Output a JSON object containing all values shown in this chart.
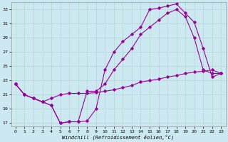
{
  "xlabel": "Windchill (Refroidissement éolien,°C)",
  "bg_color": "#cce8f0",
  "line_color": "#990099",
  "grid_color": "#b0d8cc",
  "xlim": [
    -0.5,
    23.5
  ],
  "ylim": [
    16.5,
    34.0
  ],
  "yticks": [
    17,
    19,
    21,
    23,
    25,
    27,
    29,
    31,
    33
  ],
  "xticks": [
    0,
    1,
    2,
    3,
    4,
    5,
    6,
    7,
    8,
    9,
    10,
    11,
    12,
    13,
    14,
    15,
    16,
    17,
    18,
    19,
    20,
    21,
    22,
    23
  ],
  "line1_x": [
    0,
    1,
    2,
    3,
    4,
    5,
    6,
    7,
    8,
    9,
    10,
    11,
    12,
    13,
    14,
    15,
    16,
    17,
    18,
    19,
    20,
    21,
    22,
    23
  ],
  "line1_y": [
    22.5,
    21.0,
    20.5,
    20.0,
    19.5,
    17.0,
    17.2,
    17.2,
    17.3,
    19.0,
    24.5,
    27.0,
    28.5,
    29.5,
    30.5,
    33.0,
    33.2,
    33.5,
    33.8,
    32.5,
    31.2,
    27.5,
    23.5,
    24.0
  ],
  "line2_x": [
    0,
    1,
    2,
    3,
    4,
    5,
    6,
    7,
    8,
    9,
    10,
    11,
    12,
    13,
    14,
    15,
    16,
    17,
    18,
    19,
    20,
    21,
    22,
    23
  ],
  "line2_y": [
    22.5,
    21.0,
    20.5,
    20.0,
    19.5,
    17.0,
    17.2,
    17.2,
    21.5,
    21.5,
    22.5,
    24.5,
    26.0,
    27.5,
    29.5,
    30.5,
    31.5,
    32.5,
    33.0,
    32.0,
    29.0,
    24.5,
    24.0,
    24.0
  ],
  "line3_x": [
    0,
    1,
    2,
    3,
    4,
    5,
    6,
    7,
    8,
    9,
    10,
    11,
    12,
    13,
    14,
    15,
    16,
    17,
    18,
    19,
    20,
    21,
    22,
    23
  ],
  "line3_y": [
    22.5,
    21.0,
    20.5,
    20.0,
    20.5,
    21.0,
    21.2,
    21.2,
    21.2,
    21.3,
    21.5,
    21.7,
    22.0,
    22.3,
    22.8,
    23.0,
    23.2,
    23.5,
    23.7,
    24.0,
    24.2,
    24.3,
    24.5,
    24.0
  ]
}
